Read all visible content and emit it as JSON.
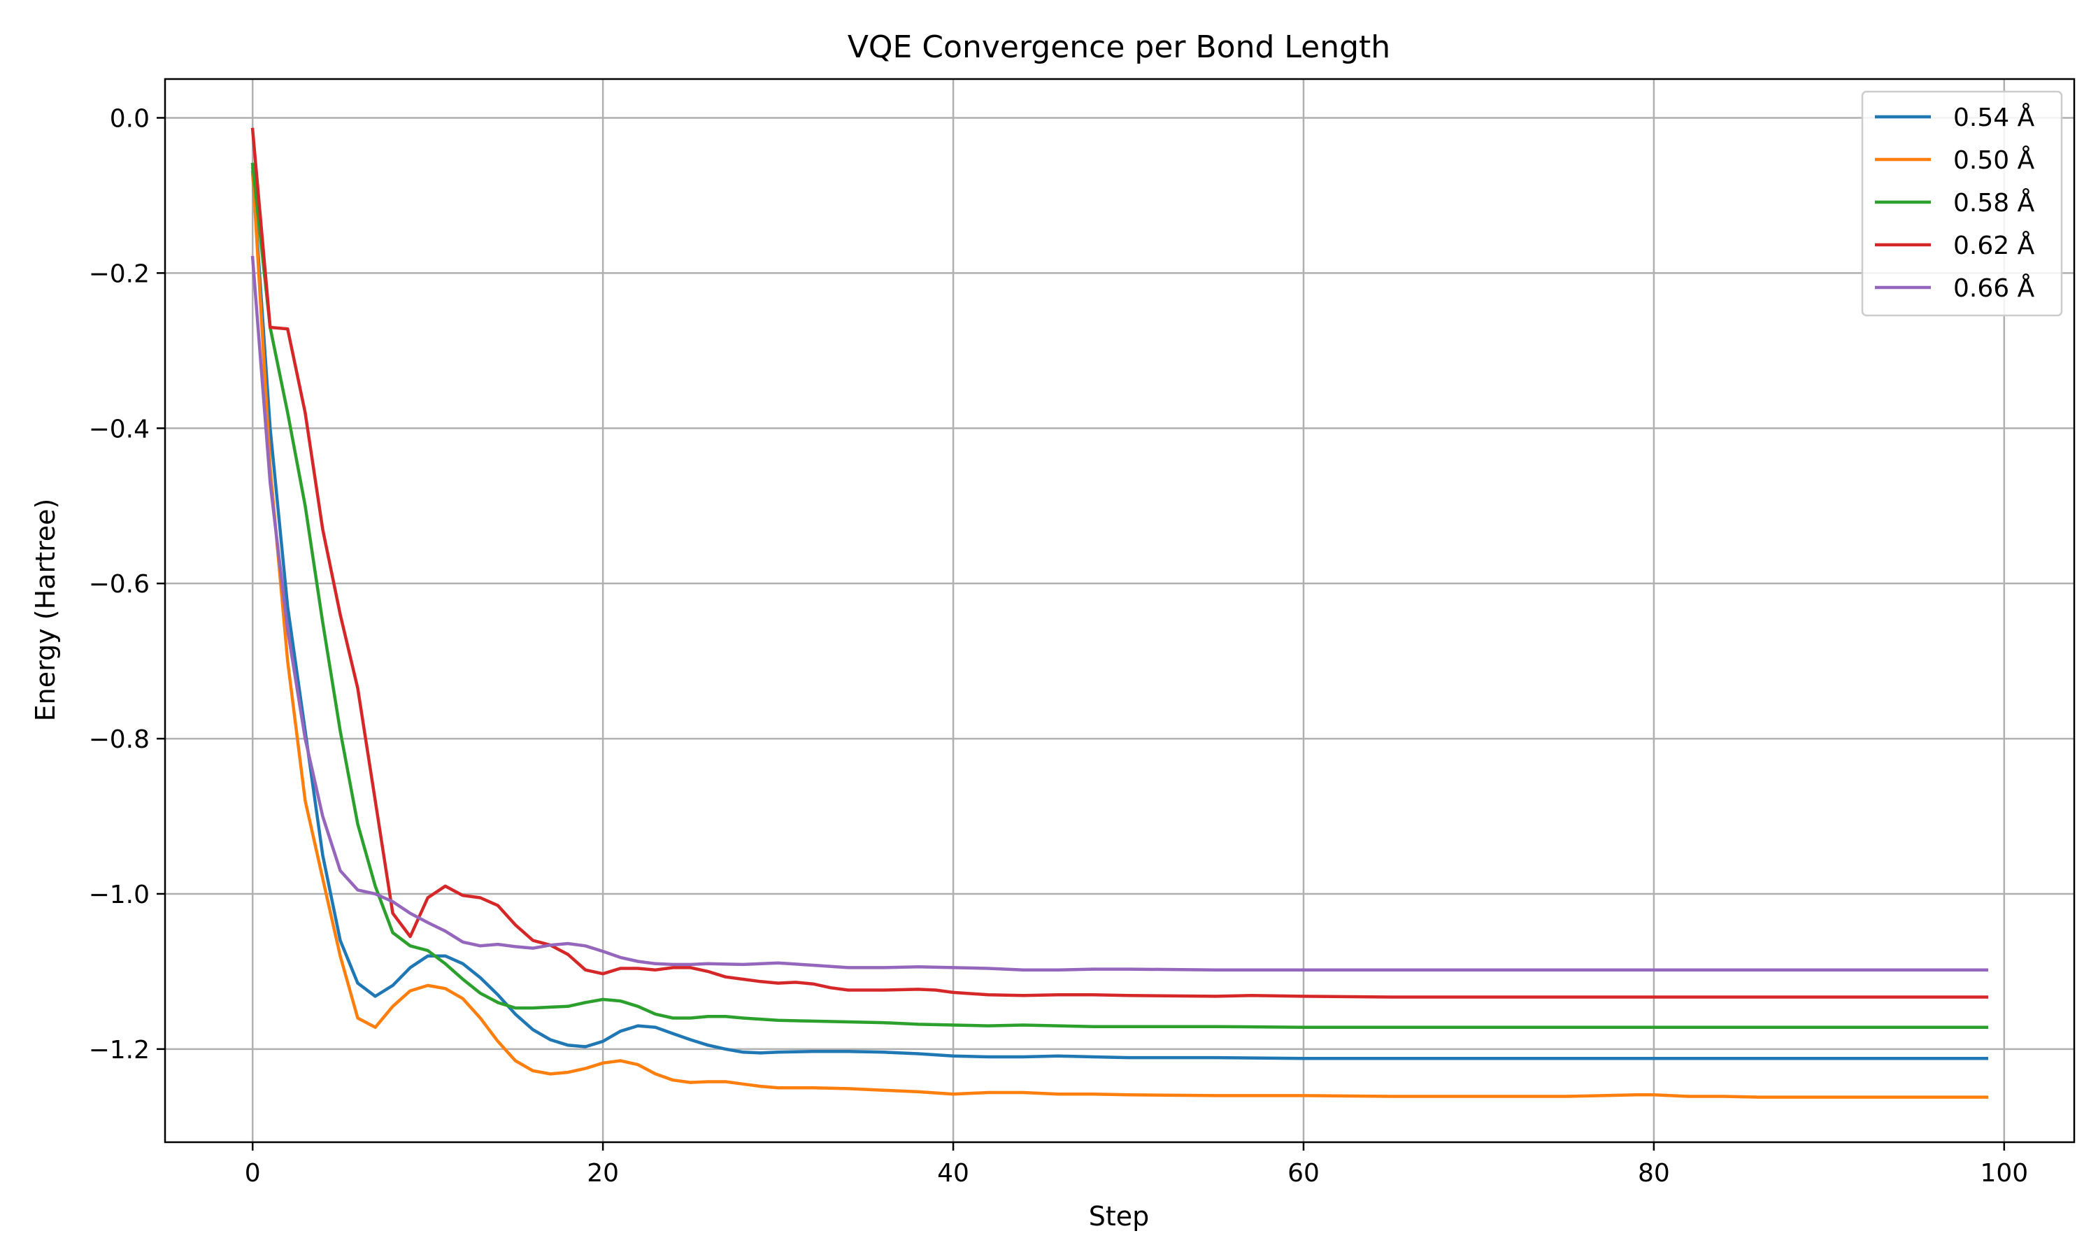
{
  "chart_data": {
    "type": "line",
    "title": "VQE Convergence per Bond Length",
    "xlabel": "Step",
    "ylabel": "Energy (Hartree)",
    "xlim": [
      -5,
      104
    ],
    "ylim": [
      -1.32,
      0.05
    ],
    "xticks": [
      0,
      20,
      40,
      60,
      80,
      100
    ],
    "xtick_labels": [
      "0",
      "20",
      "40",
      "60",
      "80",
      "100"
    ],
    "yticks": [
      0.0,
      -0.2,
      -0.4,
      -0.6,
      -0.8,
      -1.0,
      -1.2
    ],
    "ytick_labels": [
      "0.0",
      "−0.2",
      "−0.4",
      "−0.6",
      "−0.8",
      "−1.0",
      "−1.2"
    ],
    "grid": true,
    "legend_position": "top-right",
    "series": [
      {
        "name": "0.54 Å",
        "color": "#1f77b4",
        "points": [
          [
            0,
            -0.07
          ],
          [
            1,
            -0.4
          ],
          [
            2,
            -0.63
          ],
          [
            3,
            -0.79
          ],
          [
            4,
            -0.95
          ],
          [
            5,
            -1.06
          ],
          [
            6,
            -1.115
          ],
          [
            7,
            -1.132
          ],
          [
            8,
            -1.118
          ],
          [
            9,
            -1.095
          ],
          [
            10,
            -1.08
          ],
          [
            11,
            -1.08
          ],
          [
            12,
            -1.09
          ],
          [
            13,
            -1.108
          ],
          [
            14,
            -1.13
          ],
          [
            15,
            -1.155
          ],
          [
            16,
            -1.175
          ],
          [
            17,
            -1.188
          ],
          [
            18,
            -1.195
          ],
          [
            19,
            -1.197
          ],
          [
            20,
            -1.19
          ],
          [
            21,
            -1.177
          ],
          [
            22,
            -1.17
          ],
          [
            23,
            -1.172
          ],
          [
            24,
            -1.18
          ],
          [
            25,
            -1.188
          ],
          [
            26,
            -1.195
          ],
          [
            27,
            -1.2
          ],
          [
            28,
            -1.204
          ],
          [
            29,
            -1.205
          ],
          [
            30,
            -1.204
          ],
          [
            32,
            -1.203
          ],
          [
            34,
            -1.203
          ],
          [
            36,
            -1.204
          ],
          [
            38,
            -1.206
          ],
          [
            40,
            -1.209
          ],
          [
            42,
            -1.21
          ],
          [
            44,
            -1.21
          ],
          [
            46,
            -1.209
          ],
          [
            48,
            -1.21
          ],
          [
            50,
            -1.211
          ],
          [
            55,
            -1.211
          ],
          [
            60,
            -1.212
          ],
          [
            70,
            -1.212
          ],
          [
            80,
            -1.212
          ],
          [
            90,
            -1.212
          ],
          [
            99,
            -1.212
          ]
        ]
      },
      {
        "name": "0.50 Å",
        "color": "#ff7f0e",
        "points": [
          [
            0,
            -0.065
          ],
          [
            1,
            -0.45
          ],
          [
            2,
            -0.7
          ],
          [
            3,
            -0.88
          ],
          [
            4,
            -0.98
          ],
          [
            5,
            -1.08
          ],
          [
            6,
            -1.16
          ],
          [
            7,
            -1.172
          ],
          [
            8,
            -1.145
          ],
          [
            9,
            -1.125
          ],
          [
            10,
            -1.118
          ],
          [
            11,
            -1.122
          ],
          [
            12,
            -1.135
          ],
          [
            13,
            -1.16
          ],
          [
            14,
            -1.19
          ],
          [
            15,
            -1.215
          ],
          [
            16,
            -1.228
          ],
          [
            17,
            -1.232
          ],
          [
            18,
            -1.23
          ],
          [
            19,
            -1.225
          ],
          [
            20,
            -1.218
          ],
          [
            21,
            -1.215
          ],
          [
            22,
            -1.22
          ],
          [
            23,
            -1.232
          ],
          [
            24,
            -1.24
          ],
          [
            25,
            -1.243
          ],
          [
            26,
            -1.242
          ],
          [
            27,
            -1.242
          ],
          [
            28,
            -1.245
          ],
          [
            29,
            -1.248
          ],
          [
            30,
            -1.25
          ],
          [
            32,
            -1.25
          ],
          [
            34,
            -1.251
          ],
          [
            36,
            -1.253
          ],
          [
            38,
            -1.255
          ],
          [
            40,
            -1.258
          ],
          [
            42,
            -1.256
          ],
          [
            44,
            -1.256
          ],
          [
            46,
            -1.258
          ],
          [
            48,
            -1.258
          ],
          [
            50,
            -1.259
          ],
          [
            55,
            -1.26
          ],
          [
            60,
            -1.26
          ],
          [
            65,
            -1.261
          ],
          [
            70,
            -1.261
          ],
          [
            75,
            -1.261
          ],
          [
            79,
            -1.259
          ],
          [
            80,
            -1.259
          ],
          [
            82,
            -1.261
          ],
          [
            84,
            -1.261
          ],
          [
            86,
            -1.262
          ],
          [
            90,
            -1.262
          ],
          [
            95,
            -1.262
          ],
          [
            99,
            -1.262
          ]
        ]
      },
      {
        "name": "0.58 Å",
        "color": "#2ca02c",
        "points": [
          [
            0,
            -0.06
          ],
          [
            1,
            -0.27
          ],
          [
            2,
            -0.38
          ],
          [
            3,
            -0.5
          ],
          [
            4,
            -0.65
          ],
          [
            5,
            -0.79
          ],
          [
            6,
            -0.91
          ],
          [
            7,
            -0.99
          ],
          [
            8,
            -1.05
          ],
          [
            9,
            -1.067
          ],
          [
            10,
            -1.073
          ],
          [
            11,
            -1.09
          ],
          [
            12,
            -1.11
          ],
          [
            13,
            -1.128
          ],
          [
            14,
            -1.14
          ],
          [
            15,
            -1.147
          ],
          [
            16,
            -1.147
          ],
          [
            17,
            -1.146
          ],
          [
            18,
            -1.145
          ],
          [
            19,
            -1.14
          ],
          [
            20,
            -1.136
          ],
          [
            21,
            -1.138
          ],
          [
            22,
            -1.145
          ],
          [
            23,
            -1.155
          ],
          [
            24,
            -1.16
          ],
          [
            25,
            -1.16
          ],
          [
            26,
            -1.158
          ],
          [
            27,
            -1.158
          ],
          [
            28,
            -1.16
          ],
          [
            30,
            -1.163
          ],
          [
            32,
            -1.164
          ],
          [
            34,
            -1.165
          ],
          [
            36,
            -1.166
          ],
          [
            38,
            -1.168
          ],
          [
            40,
            -1.169
          ],
          [
            42,
            -1.17
          ],
          [
            44,
            -1.169
          ],
          [
            46,
            -1.17
          ],
          [
            48,
            -1.171
          ],
          [
            50,
            -1.171
          ],
          [
            55,
            -1.171
          ],
          [
            60,
            -1.172
          ],
          [
            70,
            -1.172
          ],
          [
            80,
            -1.172
          ],
          [
            90,
            -1.172
          ],
          [
            99,
            -1.172
          ]
        ]
      },
      {
        "name": "0.62 Å",
        "color": "#d62728",
        "points": [
          [
            0,
            -0.015
          ],
          [
            1,
            -0.27
          ],
          [
            2,
            -0.272
          ],
          [
            3,
            -0.38
          ],
          [
            4,
            -0.53
          ],
          [
            5,
            -0.64
          ],
          [
            6,
            -0.735
          ],
          [
            7,
            -0.88
          ],
          [
            8,
            -1.025
          ],
          [
            9,
            -1.055
          ],
          [
            10,
            -1.005
          ],
          [
            11,
            -0.99
          ],
          [
            12,
            -1.002
          ],
          [
            13,
            -1.005
          ],
          [
            14,
            -1.015
          ],
          [
            15,
            -1.04
          ],
          [
            16,
            -1.06
          ],
          [
            17,
            -1.066
          ],
          [
            18,
            -1.078
          ],
          [
            19,
            -1.098
          ],
          [
            20,
            -1.103
          ],
          [
            21,
            -1.096
          ],
          [
            22,
            -1.096
          ],
          [
            23,
            -1.098
          ],
          [
            24,
            -1.095
          ],
          [
            25,
            -1.095
          ],
          [
            26,
            -1.1
          ],
          [
            27,
            -1.107
          ],
          [
            28,
            -1.11
          ],
          [
            29,
            -1.113
          ],
          [
            30,
            -1.115
          ],
          [
            31,
            -1.114
          ],
          [
            32,
            -1.116
          ],
          [
            33,
            -1.121
          ],
          [
            34,
            -1.124
          ],
          [
            35,
            -1.124
          ],
          [
            36,
            -1.124
          ],
          [
            38,
            -1.123
          ],
          [
            39,
            -1.124
          ],
          [
            40,
            -1.127
          ],
          [
            42,
            -1.13
          ],
          [
            44,
            -1.131
          ],
          [
            46,
            -1.13
          ],
          [
            48,
            -1.13
          ],
          [
            50,
            -1.131
          ],
          [
            55,
            -1.132
          ],
          [
            57,
            -1.131
          ],
          [
            60,
            -1.132
          ],
          [
            65,
            -1.133
          ],
          [
            70,
            -1.133
          ],
          [
            80,
            -1.133
          ],
          [
            90,
            -1.133
          ],
          [
            99,
            -1.133
          ]
        ]
      },
      {
        "name": "0.66 Å",
        "color": "#9467bd",
        "points": [
          [
            0,
            -0.18
          ],
          [
            1,
            -0.47
          ],
          [
            2,
            -0.66
          ],
          [
            3,
            -0.8
          ],
          [
            4,
            -0.9
          ],
          [
            5,
            -0.97
          ],
          [
            6,
            -0.995
          ],
          [
            7,
            -1.0
          ],
          [
            8,
            -1.01
          ],
          [
            9,
            -1.025
          ],
          [
            10,
            -1.037
          ],
          [
            11,
            -1.048
          ],
          [
            12,
            -1.062
          ],
          [
            13,
            -1.067
          ],
          [
            14,
            -1.065
          ],
          [
            15,
            -1.068
          ],
          [
            16,
            -1.07
          ],
          [
            17,
            -1.066
          ],
          [
            18,
            -1.064
          ],
          [
            19,
            -1.067
          ],
          [
            20,
            -1.074
          ],
          [
            21,
            -1.082
          ],
          [
            22,
            -1.087
          ],
          [
            23,
            -1.09
          ],
          [
            24,
            -1.091
          ],
          [
            25,
            -1.091
          ],
          [
            26,
            -1.09
          ],
          [
            28,
            -1.091
          ],
          [
            30,
            -1.089
          ],
          [
            32,
            -1.092
          ],
          [
            34,
            -1.095
          ],
          [
            36,
            -1.095
          ],
          [
            38,
            -1.094
          ],
          [
            40,
            -1.095
          ],
          [
            42,
            -1.096
          ],
          [
            44,
            -1.098
          ],
          [
            46,
            -1.098
          ],
          [
            48,
            -1.097
          ],
          [
            50,
            -1.097
          ],
          [
            55,
            -1.098
          ],
          [
            60,
            -1.098
          ],
          [
            70,
            -1.098
          ],
          [
            80,
            -1.098
          ],
          [
            90,
            -1.098
          ],
          [
            99,
            -1.098
          ]
        ]
      }
    ]
  }
}
